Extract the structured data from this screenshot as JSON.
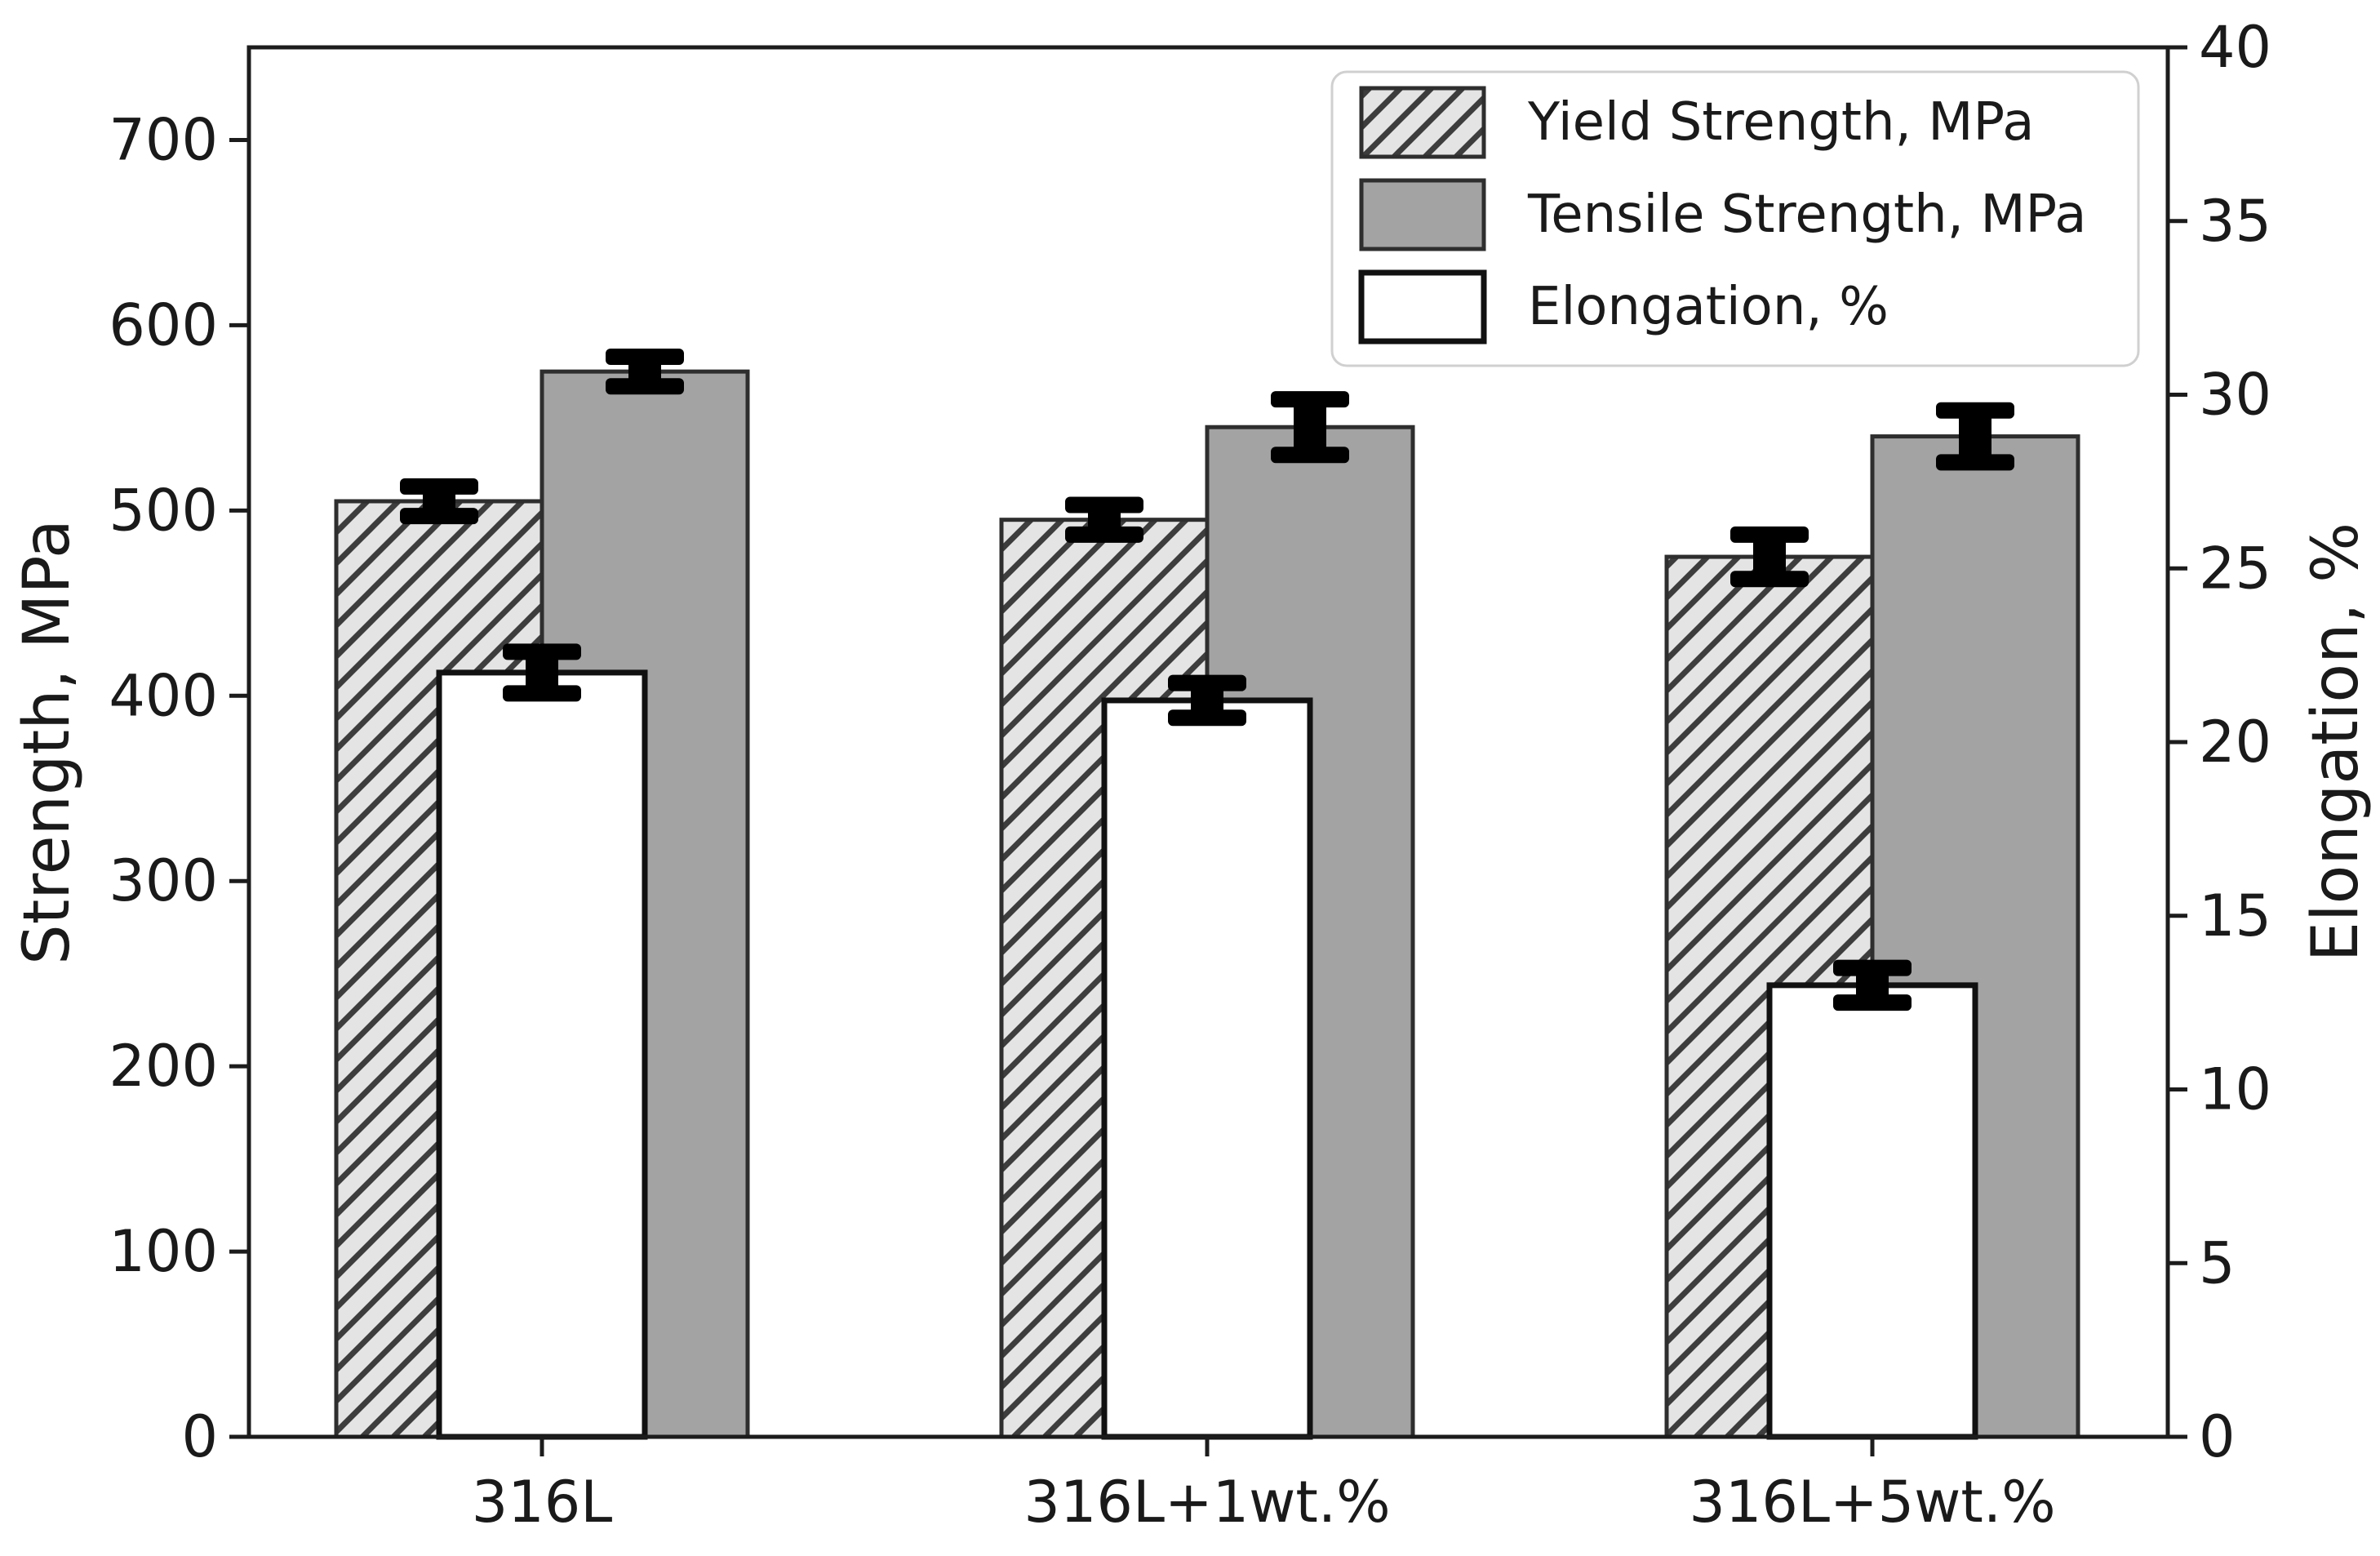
{
  "chart_data": {
    "type": "bar",
    "title": "",
    "categories": [
      "316L",
      "316L+1wt.%",
      "316L+5wt.%"
    ],
    "series": [
      {
        "name": "Yield Strength, MPa",
        "axis": "left",
        "style": "hatched",
        "values": [
          505,
          495,
          475
        ],
        "errors": [
          8,
          8,
          12
        ]
      },
      {
        "name": "Tensile Strength, MPa",
        "axis": "left",
        "style": "solid-gray",
        "values": [
          575,
          545,
          540
        ],
        "errors": [
          8,
          15,
          14
        ]
      },
      {
        "name": "Elongation, %",
        "axis": "right",
        "style": "white",
        "values": [
          22.0,
          21.2,
          13.0
        ],
        "errors": [
          0.6,
          0.5,
          0.5
        ]
      }
    ],
    "left_axis": {
      "label": "Strength, MPa",
      "ticks": [
        0,
        100,
        200,
        300,
        400,
        500,
        600,
        700
      ],
      "range": [
        0,
        750
      ]
    },
    "right_axis": {
      "label": "Elongation, %",
      "ticks": [
        0,
        5,
        10,
        15,
        20,
        25,
        30,
        35,
        40
      ],
      "range": [
        0,
        40
      ]
    },
    "legend": {
      "position": "upper right",
      "entries": [
        "Yield Strength, MPa",
        "Tensile Strength, MPa",
        "Elongation, %"
      ]
    },
    "grid": false,
    "colors": {
      "tensile_fill": "#a3a3a3",
      "hatch_fill": "#e4e4e4",
      "hatch_line": "#3d3d3d",
      "white_fill": "#ffffff",
      "bar_edge": "#2e2e2e",
      "white_bar_edge": "#111111",
      "error_bar": "#000000",
      "spine": "#1c1c1c",
      "legend_border": "#d0d0d0",
      "text": "#1a1a1a"
    }
  }
}
